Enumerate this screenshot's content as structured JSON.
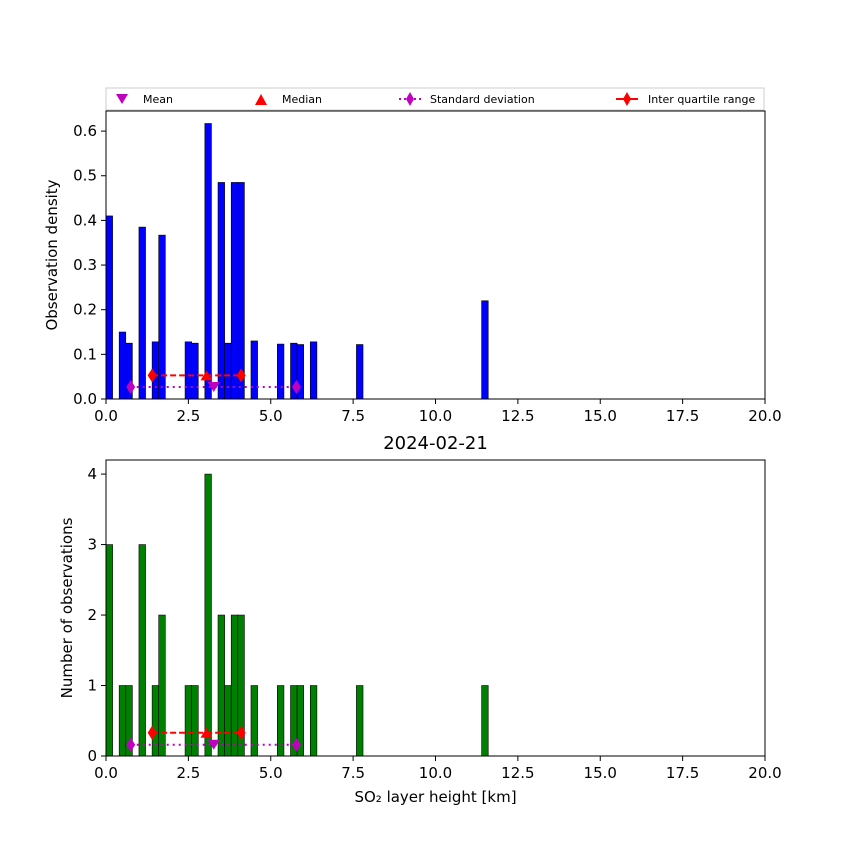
{
  "legend": {
    "mean": "Mean",
    "median": "Median",
    "std": "Standard deviation",
    "iqr": "Inter quartile range"
  },
  "chart_data": [
    {
      "type": "bar",
      "panel": "top",
      "title": "",
      "xlabel": "",
      "ylabel": "Observation density",
      "xlim": [
        0,
        20
      ],
      "ylim": [
        0,
        0.645
      ],
      "xticks": [
        "0.0",
        "2.5",
        "5.0",
        "7.5",
        "10.0",
        "12.5",
        "15.0",
        "17.5",
        "20.0"
      ],
      "yticks": [
        "0.0",
        "0.1",
        "0.2",
        "0.3",
        "0.4",
        "0.5",
        "0.6"
      ],
      "bar_color": "#0000ff",
      "bar_width": 0.2,
      "x": [
        0.1,
        0.5,
        0.7,
        1.1,
        1.5,
        1.7,
        2.5,
        2.7,
        3.1,
        3.5,
        3.7,
        3.9,
        4.1,
        4.5,
        5.3,
        5.7,
        5.9,
        6.3,
        7.7,
        11.5
      ],
      "values": [
        0.41,
        0.15,
        0.125,
        0.385,
        0.128,
        0.367,
        0.128,
        0.125,
        0.617,
        0.485,
        0.125,
        0.485,
        0.485,
        0.13,
        0.123,
        0.125,
        0.122,
        0.128,
        0.122,
        0.22
      ],
      "stats": {
        "mean": {
          "x": 3.27,
          "y": 0.027
        },
        "median": {
          "x": 3.05,
          "y": 0.053
        },
        "std": {
          "x": [
            0.75,
            5.78
          ],
          "y": 0.027
        },
        "iqr": {
          "x": [
            1.4,
            4.1
          ],
          "y": 0.053
        }
      }
    },
    {
      "type": "bar",
      "panel": "bottom",
      "title": "2024-02-21",
      "xlabel": "SO₂ layer height [km]",
      "ylabel": "Number of observations",
      "xlim": [
        0,
        20
      ],
      "ylim": [
        0,
        4.2
      ],
      "xticks": [
        "0.0",
        "2.5",
        "5.0",
        "7.5",
        "10.0",
        "12.5",
        "15.0",
        "17.5",
        "20.0"
      ],
      "yticks": [
        "0",
        "1",
        "2",
        "3",
        "4"
      ],
      "bar_color": "#008000",
      "bar_width": 0.2,
      "x": [
        0.1,
        0.5,
        0.7,
        1.1,
        1.5,
        1.7,
        2.5,
        2.7,
        3.1,
        3.5,
        3.7,
        3.9,
        4.1,
        4.5,
        5.3,
        5.7,
        5.9,
        6.3,
        7.7,
        11.5
      ],
      "values": [
        3,
        1,
        1,
        3,
        1,
        2,
        1,
        1,
        4,
        2,
        1,
        2,
        2,
        1,
        1,
        1,
        1,
        1,
        1,
        1
      ],
      "stats": {
        "mean": {
          "x": 3.27,
          "y": 0.16
        },
        "median": {
          "x": 3.05,
          "y": 0.33
        },
        "std": {
          "x": [
            0.75,
            5.78
          ],
          "y": 0.16
        },
        "iqr": {
          "x": [
            1.4,
            4.1
          ],
          "y": 0.33
        }
      }
    }
  ]
}
